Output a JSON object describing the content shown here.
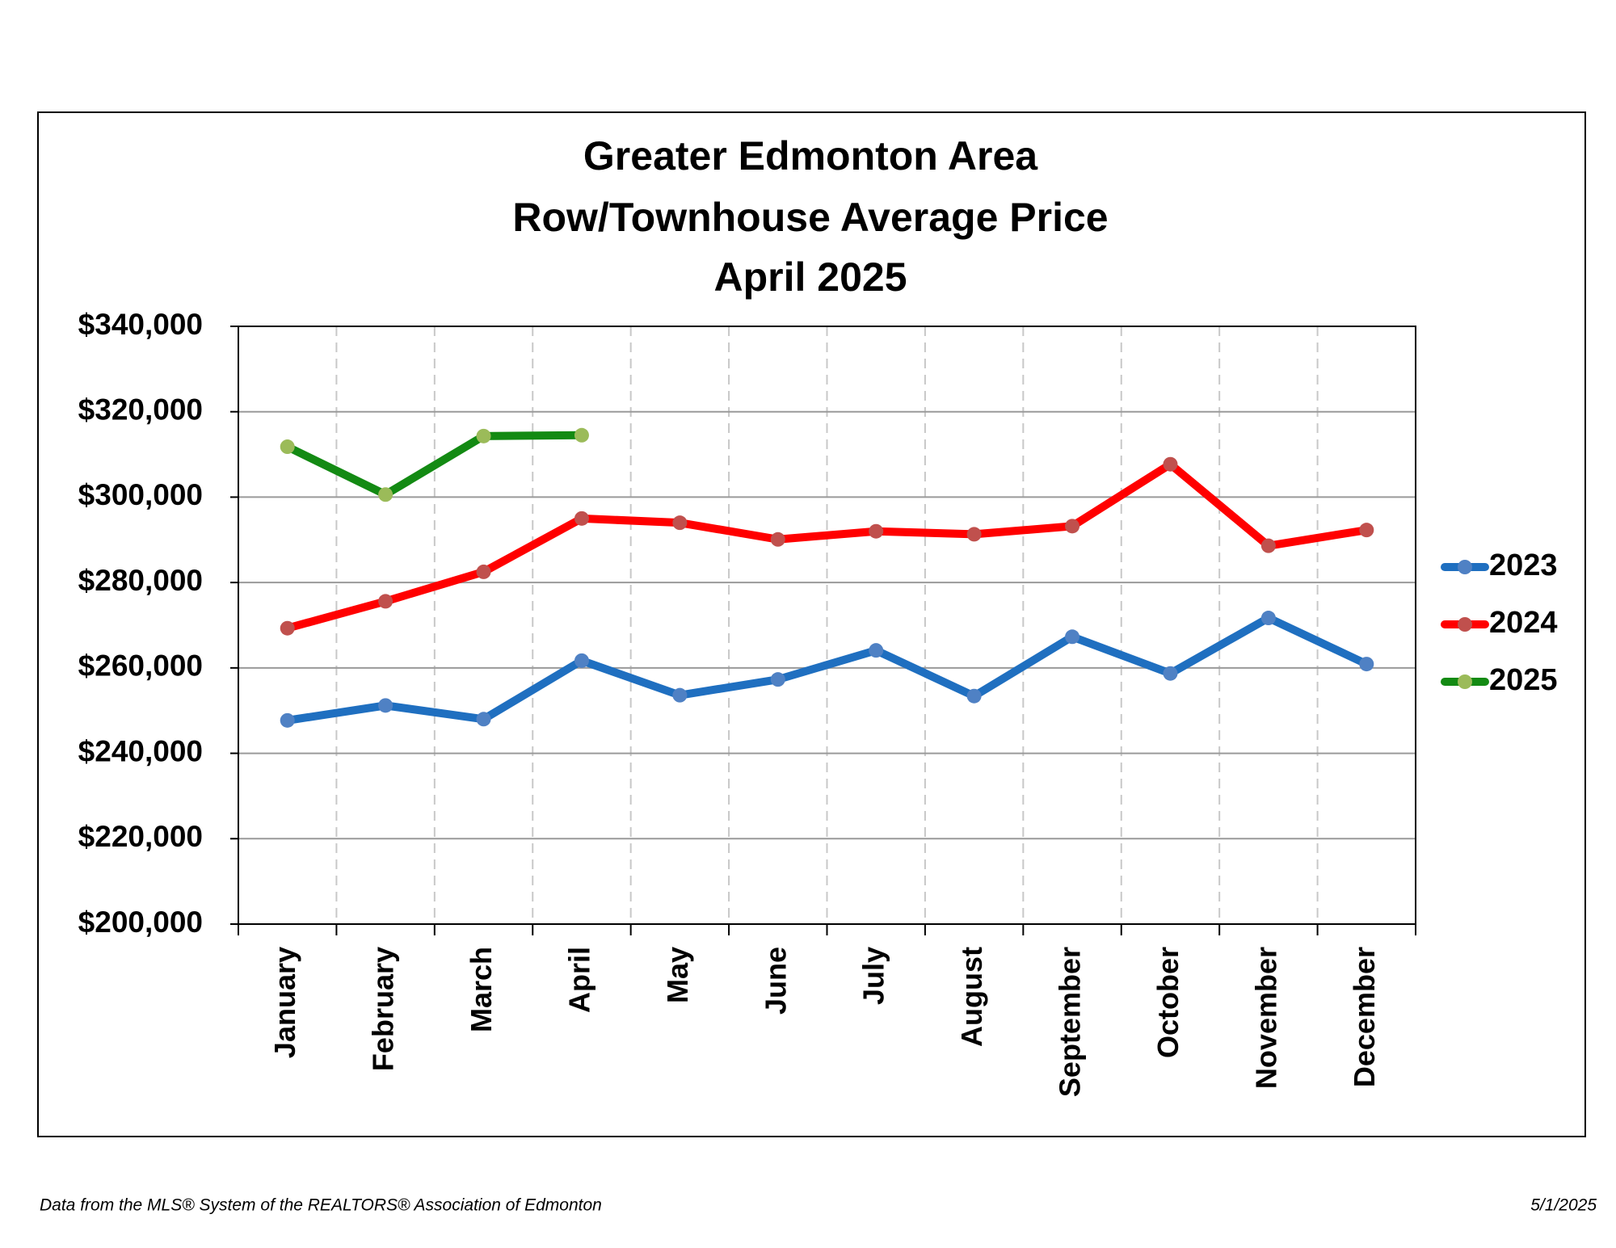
{
  "chart_data": {
    "type": "line",
    "title_lines": [
      "Greater Edmonton Area",
      "Row/Townhouse Average Price",
      "April 2025"
    ],
    "categories": [
      "January",
      "February",
      "March",
      "April",
      "May",
      "June",
      "July",
      "August",
      "September",
      "October",
      "November",
      "December"
    ],
    "series": [
      {
        "name": "2023",
        "color": "#1f6fc0",
        "marker_color": "#4f81c4",
        "values": [
          247700,
          251200,
          248000,
          261700,
          253600,
          257300,
          264100,
          253400,
          267300,
          258700,
          271700,
          260900
        ]
      },
      {
        "name": "2024",
        "color": "#ff0000",
        "marker_color": "#c0504d",
        "values": [
          269300,
          275600,
          282500,
          295000,
          294000,
          290100,
          292000,
          291300,
          293200,
          307700,
          288600,
          292300
        ]
      },
      {
        "name": "2025",
        "color": "#138a13",
        "marker_color": "#9bbb59",
        "values": [
          311800,
          300600,
          314300,
          314500,
          null,
          null,
          null,
          null,
          null,
          null,
          null,
          null
        ]
      }
    ],
    "ylim": [
      200000,
      340000
    ],
    "yticks": [
      {
        "value": 200000,
        "label": "$200,000"
      },
      {
        "value": 220000,
        "label": "$220,000"
      },
      {
        "value": 240000,
        "label": "$240,000"
      },
      {
        "value": 260000,
        "label": "$260,000"
      },
      {
        "value": 280000,
        "label": "$280,000"
      },
      {
        "value": 300000,
        "label": "$300,000"
      },
      {
        "value": 320000,
        "label": "$320,000"
      },
      {
        "value": 340000,
        "label": "$340,000"
      }
    ],
    "grid": true,
    "legend": "right",
    "footer_left": "Data from the MLS® System of the REALTORS® Association of Edmonton",
    "footer_right": "5/1/2025"
  }
}
